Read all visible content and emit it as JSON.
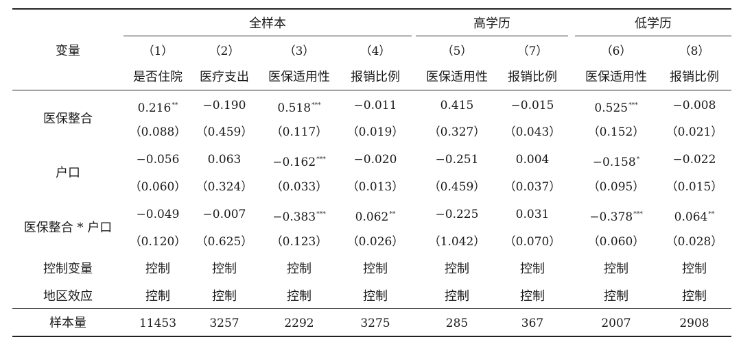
{
  "groups": [
    "全样本",
    "高学历",
    "低学历"
  ],
  "var_header": "变量",
  "col_numbers": [
    "（1）",
    "（2）",
    "（3）",
    "（4）",
    "（5）",
    "（7）",
    "（6）",
    "（8）"
  ],
  "col_names": [
    "是否住院",
    "医疗支出",
    "医保适用性",
    "报销比例",
    "医保适用性",
    "报销比例",
    "医保适用性",
    "报销比例"
  ],
  "rows": [
    {
      "label": "医保整合",
      "coef": [
        [
          "0.216",
          "**"
        ],
        [
          "−0.190",
          ""
        ],
        [
          "0.518",
          "***"
        ],
        [
          "−0.011",
          ""
        ],
        [
          "0.415",
          ""
        ],
        [
          "−0.015",
          ""
        ],
        [
          "0.525",
          "***"
        ],
        [
          "−0.008",
          ""
        ]
      ],
      "se": [
        "（0.088）",
        "（0.459）",
        "（0.117）",
        "（0.019）",
        "（0.327）",
        "（0.043）",
        "（0.152）",
        "（0.021）"
      ]
    },
    {
      "label": "户口",
      "coef": [
        [
          "−0.056",
          ""
        ],
        [
          "0.063",
          ""
        ],
        [
          "−0.162",
          "***"
        ],
        [
          "−0.020",
          ""
        ],
        [
          "−0.251",
          ""
        ],
        [
          "0.004",
          ""
        ],
        [
          "−0.158",
          "*"
        ],
        [
          "−0.022",
          ""
        ]
      ],
      "se": [
        "（0.060）",
        "（0.324）",
        "（0.033）",
        "（0.013）",
        "（0.459）",
        "（0.037）",
        "（0.095）",
        "（0.015）"
      ]
    },
    {
      "label": "医保整合 * 户口",
      "coef": [
        [
          "−0.049",
          ""
        ],
        [
          "−0.007",
          ""
        ],
        [
          "−0.383",
          "***"
        ],
        [
          "0.062",
          "**"
        ],
        [
          "−0.225",
          ""
        ],
        [
          "0.031",
          ""
        ],
        [
          "−0.378",
          "***"
        ],
        [
          "0.064",
          "**"
        ]
      ],
      "se": [
        "（0.120）",
        "（0.625）",
        "（0.123）",
        "（0.026）",
        "（1.042）",
        "（0.070）",
        "（0.060）",
        "（0.028）"
      ]
    }
  ],
  "controls": [
    {
      "label": "控制变量",
      "values": [
        "控制",
        "控制",
        "控制",
        "控制",
        "控制",
        "控制",
        "控制",
        "控制"
      ]
    },
    {
      "label": "地区效应",
      "values": [
        "控制",
        "控制",
        "控制",
        "控制",
        "控制",
        "控制",
        "控制",
        "控制"
      ]
    }
  ],
  "n_row": {
    "label": "样本量",
    "values": [
      "11453",
      "3257",
      "2292",
      "3275",
      "285",
      "367",
      "2007",
      "2908"
    ]
  }
}
